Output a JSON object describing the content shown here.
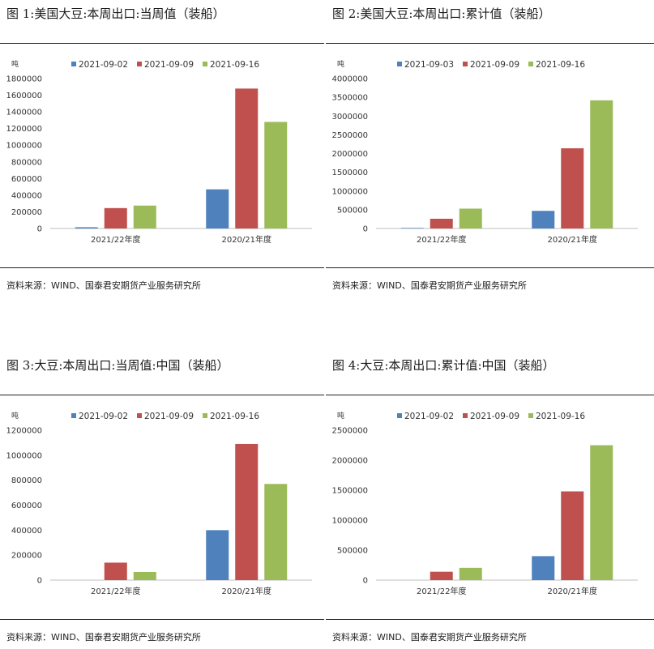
{
  "figures": [
    {
      "title": "图 1:美国大豆:本周出口:当周值（装船）",
      "source": "资料来源：WIND、国泰君安期货产业服务研究所",
      "chart_data": {
        "type": "bar",
        "unit": "吨",
        "categories": [
          "2021/22年度",
          "2020/21年度"
        ],
        "series": [
          {
            "name": "2021-09-02",
            "color": "#4F81BD",
            "values": [
              15000,
              470000
            ]
          },
          {
            "name": "2021-09-09",
            "color": "#C0504D",
            "values": [
              245000,
              1680000
            ]
          },
          {
            "name": "2021-09-16",
            "color": "#9BBB59",
            "values": [
              275000,
              1280000
            ]
          }
        ],
        "ylim": [
          0,
          1800000
        ],
        "yticks": [
          0,
          200000,
          400000,
          600000,
          800000,
          1000000,
          1200000,
          1400000,
          1600000,
          1800000
        ],
        "legend": "top"
      }
    },
    {
      "title": "图 2:美国大豆:本周出口:累计值（装船）",
      "source": "资料来源：WIND、国泰君安期货产业服务研究所",
      "chart_data": {
        "type": "bar",
        "unit": "吨",
        "categories": [
          "2021/22年度",
          "2020/21年度"
        ],
        "series": [
          {
            "name": "2021-09-03",
            "color": "#4F81BD",
            "values": [
              15000,
              470000
            ]
          },
          {
            "name": "2021-09-09",
            "color": "#C0504D",
            "values": [
              260000,
              2140000
            ]
          },
          {
            "name": "2021-09-16",
            "color": "#9BBB59",
            "values": [
              530000,
              3420000
            ]
          }
        ],
        "ylim": [
          0,
          4000000
        ],
        "yticks": [
          0,
          500000,
          1000000,
          1500000,
          2000000,
          2500000,
          3000000,
          3500000,
          4000000
        ],
        "legend": "top"
      }
    },
    {
      "title": "图 3:大豆:本周出口:当周值:中国（装船）",
      "source": "资料来源：WIND、国泰君安期货产业服务研究所",
      "chart_data": {
        "type": "bar",
        "unit": "吨",
        "categories": [
          "2021/22年度",
          "2020/21年度"
        ],
        "series": [
          {
            "name": "2021-09-02",
            "color": "#4F81BD",
            "values": [
              0,
              400000
            ]
          },
          {
            "name": "2021-09-09",
            "color": "#C0504D",
            "values": [
              140000,
              1090000
            ]
          },
          {
            "name": "2021-09-16",
            "color": "#9BBB59",
            "values": [
              65000,
              770000
            ]
          }
        ],
        "ylim": [
          0,
          1200000
        ],
        "yticks": [
          0,
          200000,
          400000,
          600000,
          800000,
          1000000,
          1200000
        ],
        "legend": "top"
      }
    },
    {
      "title": "图 4:大豆:本周出口:累计值:中国（装船）",
      "source": "资料来源：WIND、国泰君安期货产业服务研究所",
      "chart_data": {
        "type": "bar",
        "unit": "吨",
        "categories": [
          "2021/22年度",
          "2020/21年度"
        ],
        "series": [
          {
            "name": "2021-09-02",
            "color": "#4F81BD",
            "values": [
              0,
              400000
            ]
          },
          {
            "name": "2021-09-09",
            "color": "#C0504D",
            "values": [
              140000,
              1480000
            ]
          },
          {
            "name": "2021-09-16",
            "color": "#9BBB59",
            "values": [
              205000,
              2250000
            ]
          }
        ],
        "ylim": [
          0,
          2500000
        ],
        "yticks": [
          0,
          500000,
          1000000,
          1500000,
          2000000,
          2500000
        ],
        "legend": "top"
      }
    }
  ]
}
